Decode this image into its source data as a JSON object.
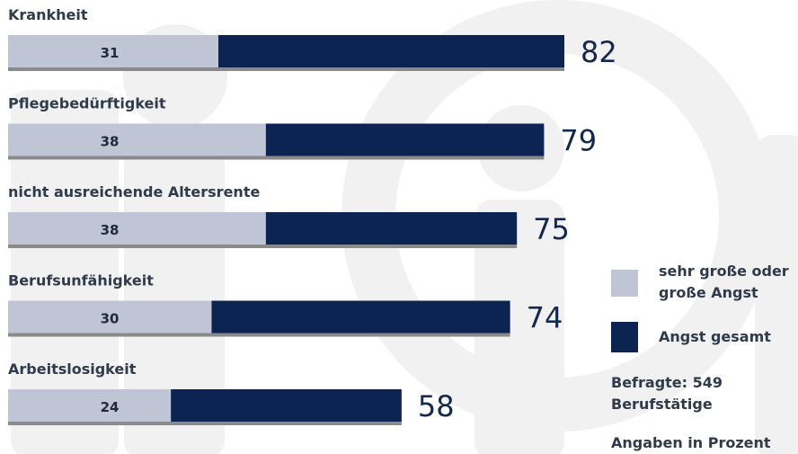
{
  "chart_data": {
    "type": "bar",
    "orientation": "horizontal",
    "stacked_overlay": true,
    "categories": [
      "Krankheit",
      "Pflegebedürftigkeit",
      "nicht ausreichende Altersrente",
      "Berufsunfähigkeit",
      "Arbeitslosigkeit"
    ],
    "series": [
      {
        "name": "sehr große oder große Angst",
        "values": [
          31,
          38,
          38,
          30,
          24
        ],
        "color": "#c0c5d6"
      },
      {
        "name": "Angst gesamt",
        "values": [
          82,
          79,
          75,
          74,
          58
        ],
        "color": "#0c2452"
      }
    ],
    "xlim": [
      0,
      82
    ],
    "grid": false,
    "legend_position": "right"
  },
  "legend": {
    "items": [
      {
        "label_lines": [
          "sehr große oder",
          "große Angst"
        ],
        "color": "#c0c5d6"
      },
      {
        "label_lines": [
          "Angst gesamt"
        ],
        "color": "#0c2452"
      }
    ]
  },
  "notes": {
    "respondents_lines": [
      "Befragte: 549",
      "Berufstätige"
    ],
    "units": "Angaben in Prozent"
  }
}
